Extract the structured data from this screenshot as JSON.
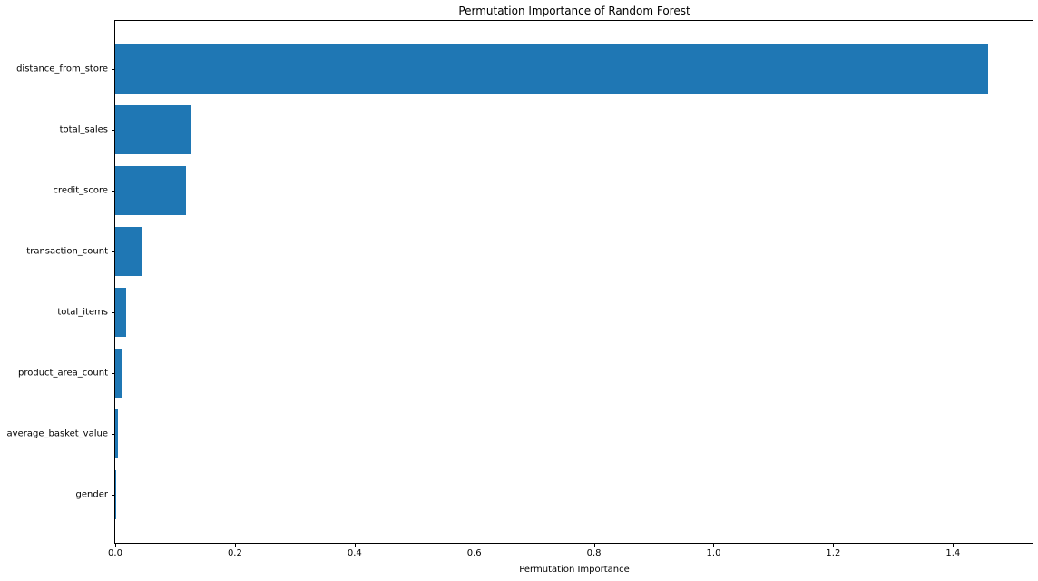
{
  "chart_data": {
    "type": "bar",
    "orientation": "horizontal",
    "title": "Permutation Importance of Random Forest",
    "xlabel": "Permutation Importance",
    "ylabel": "",
    "categories": [
      "distance_from_store",
      "total_sales",
      "credit_score",
      "transaction_count",
      "total_items",
      "product_area_count",
      "average_basket_value",
      "gender"
    ],
    "values": [
      1.458,
      0.128,
      0.119,
      0.045,
      0.018,
      0.01,
      0.004,
      0.001
    ],
    "xticks": [
      0.0,
      0.2,
      0.4,
      0.6,
      0.8,
      1.0,
      1.2,
      1.4
    ],
    "xtick_labels": [
      "0.0",
      "0.2",
      "0.4",
      "0.6",
      "0.8",
      "1.0",
      "1.2",
      "1.4"
    ],
    "xlim": [
      0,
      1.533
    ],
    "bar_color": "#1f77b4",
    "bar_thickness_ratio": 0.8,
    "grid": false,
    "legend": null
  }
}
